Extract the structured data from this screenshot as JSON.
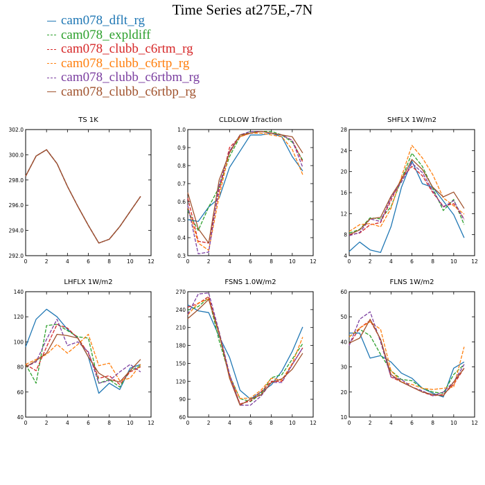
{
  "figure_title": "Time Series at275E,-7N",
  "legend": [
    {
      "label": "cam078_dflt_rg",
      "color": "#1f77b4",
      "dashed": false
    },
    {
      "label": "cam078_expldiff",
      "color": "#2ca02c",
      "dashed": true
    },
    {
      "label": "cam078_clubb_c6rtm_rg",
      "color": "#d62728",
      "dashed": true
    },
    {
      "label": "cam078_clubb_c6rtp_rg",
      "color": "#ff7f0e",
      "dashed": true
    },
    {
      "label": "cam078_clubb_c6rtbm_rg",
      "color": "#7b3fa0",
      "dashed": true
    },
    {
      "label": "cam078_clubb_c6rtbp_rg",
      "color": "#a0522d",
      "dashed": false
    }
  ],
  "chart_data": [
    {
      "type": "line",
      "title": "TS   1K",
      "x": [
        0,
        1,
        2,
        3,
        4,
        5,
        6,
        7,
        8,
        9,
        10,
        11
      ],
      "xlim": [
        0,
        12
      ],
      "xticks": [
        "0",
        "2",
        "4",
        "6",
        "8",
        "10",
        "12"
      ],
      "ylim": [
        292,
        302
      ],
      "yticks": [
        "292.0",
        "294.0",
        "296.0",
        "298.0",
        "300.0",
        "302.0"
      ],
      "series": [
        {
          "name": "cam078_dflt_rg",
          "values": [
            298.3,
            299.9,
            300.4,
            299.3,
            297.5,
            295.9,
            294.4,
            293.0,
            293.3,
            294.3,
            295.5,
            296.7
          ]
        },
        {
          "name": "cam078_expldiff",
          "values": [
            298.3,
            299.9,
            300.4,
            299.3,
            297.5,
            295.9,
            294.4,
            293.0,
            293.3,
            294.3,
            295.5,
            296.7
          ]
        },
        {
          "name": "cam078_clubb_c6rtm_rg",
          "values": [
            298.3,
            299.9,
            300.4,
            299.3,
            297.5,
            295.9,
            294.4,
            293.0,
            293.3,
            294.3,
            295.5,
            296.7
          ]
        },
        {
          "name": "cam078_clubb_c6rtp_rg",
          "values": [
            298.3,
            299.9,
            300.4,
            299.3,
            297.5,
            295.9,
            294.4,
            293.0,
            293.3,
            294.3,
            295.5,
            296.7
          ]
        },
        {
          "name": "cam078_clubb_c6rtbm_rg",
          "values": [
            298.3,
            299.9,
            300.4,
            299.3,
            297.5,
            295.9,
            294.4,
            293.0,
            293.3,
            294.3,
            295.5,
            296.7
          ]
        },
        {
          "name": "cam078_clubb_c6rtbp_rg",
          "values": [
            298.3,
            299.9,
            300.4,
            299.3,
            297.5,
            295.9,
            294.4,
            293.0,
            293.3,
            294.3,
            295.5,
            296.7
          ]
        }
      ]
    },
    {
      "type": "line",
      "title": "CLDLOW   1fraction",
      "x": [
        0,
        1,
        2,
        3,
        4,
        5,
        6,
        7,
        8,
        9,
        10,
        11
      ],
      "xlim": [
        0,
        12
      ],
      "xticks": [
        "0",
        "2",
        "4",
        "6",
        "8",
        "10",
        "12"
      ],
      "ylim": [
        0.3,
        1.0
      ],
      "yticks": [
        "0.3",
        "0.4",
        "0.5",
        "0.6",
        "0.7",
        "0.8",
        "0.9",
        "1.0"
      ],
      "series": [
        {
          "name": "cam078_dflt_rg",
          "values": [
            0.5,
            0.49,
            0.57,
            0.62,
            0.79,
            0.88,
            0.97,
            0.97,
            0.98,
            0.96,
            0.85,
            0.77
          ]
        },
        {
          "name": "cam078_expldiff",
          "values": [
            0.55,
            0.44,
            0.57,
            0.68,
            0.85,
            0.96,
            0.99,
            0.99,
            0.99,
            0.97,
            0.93,
            0.83
          ]
        },
        {
          "name": "cam078_clubb_c6rtm_rg",
          "values": [
            0.62,
            0.38,
            0.37,
            0.66,
            0.9,
            0.96,
            0.98,
            0.99,
            0.98,
            0.97,
            0.94,
            0.82
          ]
        },
        {
          "name": "cam078_clubb_c6rtp_rg",
          "values": [
            0.57,
            0.37,
            0.33,
            0.63,
            0.88,
            0.96,
            0.98,
            0.98,
            0.97,
            0.96,
            0.89,
            0.75
          ]
        },
        {
          "name": "cam078_clubb_c6rtbm_rg",
          "values": [
            0.58,
            0.31,
            0.32,
            0.69,
            0.88,
            0.97,
            0.99,
            0.99,
            0.98,
            0.97,
            0.94,
            0.79
          ]
        },
        {
          "name": "cam078_clubb_c6rtbp_rg",
          "values": [
            0.65,
            0.45,
            0.37,
            0.72,
            0.87,
            0.97,
            0.98,
            0.99,
            0.98,
            0.97,
            0.96,
            0.87
          ]
        }
      ]
    },
    {
      "type": "line",
      "title": "SHFLX   1W/m2",
      "x": [
        0,
        1,
        2,
        3,
        4,
        5,
        6,
        7,
        8,
        9,
        10,
        11
      ],
      "xlim": [
        0,
        12
      ],
      "xticks": [
        "0",
        "2",
        "4",
        "6",
        "8",
        "10",
        "12"
      ],
      "ylim": [
        4,
        28
      ],
      "yticks": [
        "4",
        "8",
        "12",
        "16",
        "20",
        "24",
        "28"
      ],
      "series": [
        {
          "name": "cam078_dflt_rg",
          "values": [
            4.8,
            6.6,
            5.1,
            4.6,
            9.5,
            17.0,
            22.0,
            17.7,
            17.0,
            14.4,
            11.8,
            7.4
          ]
        },
        {
          "name": "cam078_expldiff",
          "values": [
            8.3,
            9.0,
            11.2,
            11.0,
            13.3,
            18.5,
            23.5,
            21.0,
            16.8,
            12.6,
            14.7,
            9.9
          ]
        },
        {
          "name": "cam078_clubb_c6rtm_rg",
          "values": [
            8.0,
            8.3,
            9.9,
            10.3,
            14.5,
            18.7,
            21.0,
            19.2,
            16.0,
            13.4,
            13.9,
            11.0
          ]
        },
        {
          "name": "cam078_clubb_c6rtp_rg",
          "values": [
            8.6,
            9.9,
            10.1,
            9.5,
            13.0,
            19.0,
            25.0,
            22.6,
            19.4,
            15.0,
            13.5,
            11.9
          ]
        },
        {
          "name": "cam078_clubb_c6rtbm_rg",
          "values": [
            7.8,
            8.4,
            11.0,
            10.5,
            15.0,
            18.0,
            21.6,
            19.8,
            16.3,
            13.2,
            14.5,
            10.8
          ]
        },
        {
          "name": "cam078_clubb_c6rtbp_rg",
          "values": [
            8.0,
            8.9,
            11.0,
            11.3,
            15.3,
            18.4,
            22.3,
            20.4,
            17.0,
            15.2,
            16.1,
            13.0
          ]
        }
      ]
    },
    {
      "type": "line",
      "title": "LHFLX   1W/m2",
      "x": [
        0,
        1,
        2,
        3,
        4,
        5,
        6,
        7,
        8,
        9,
        10,
        11
      ],
      "xlim": [
        0,
        12
      ],
      "xticks": [
        "0",
        "2",
        "4",
        "6",
        "8",
        "10",
        "12"
      ],
      "ylim": [
        40,
        140
      ],
      "yticks": [
        "40",
        "60",
        "80",
        "100",
        "120",
        "140"
      ],
      "series": [
        {
          "name": "cam078_dflt_rg",
          "values": [
            96,
            118,
            126,
            120,
            110,
            103,
            88,
            59,
            67,
            62,
            79,
            82
          ]
        },
        {
          "name": "cam078_expldiff",
          "values": [
            82,
            67,
            113,
            114,
            109,
            104,
            103,
            67,
            70,
            64,
            77,
            81
          ]
        },
        {
          "name": "cam078_clubb_c6rtm_rg",
          "values": [
            82,
            77,
            96,
            114,
            111,
            103,
            91,
            71,
            73,
            66,
            76,
            80
          ]
        },
        {
          "name": "cam078_clubb_c6rtp_rg",
          "values": [
            82,
            86,
            90,
            98,
            91,
            98,
            106,
            81,
            83,
            69,
            71,
            82
          ]
        },
        {
          "name": "cam078_clubb_c6rtbm_rg",
          "values": [
            80,
            84,
            102,
            118,
            97,
            100,
            92,
            67,
            69,
            76,
            82,
            76
          ]
        },
        {
          "name": "cam078_clubb_c6rtbp_rg",
          "values": [
            80,
            85,
            91,
            106,
            105,
            103,
            88,
            75,
            70,
            68,
            77,
            86
          ]
        }
      ]
    },
    {
      "type": "line",
      "title": "FSNS   1.0W/m2",
      "x": [
        0,
        1,
        2,
        3,
        4,
        5,
        6,
        7,
        8,
        9,
        10,
        11
      ],
      "xlim": [
        0,
        12
      ],
      "xticks": [
        "0",
        "2",
        "4",
        "6",
        "8",
        "10",
        "12"
      ],
      "ylim": [
        60,
        270
      ],
      "yticks": [
        "60",
        "90",
        "120",
        "150",
        "180",
        "210",
        "240",
        "270"
      ],
      "series": [
        {
          "name": "cam078_dflt_rg",
          "values": [
            248,
            238,
            235,
            195,
            160,
            105,
            90,
            102,
            114,
            137,
            170,
            211
          ]
        },
        {
          "name": "cam078_expldiff",
          "values": [
            239,
            245,
            260,
            188,
            130,
            91,
            86,
            99,
            126,
            131,
            157,
            183
          ]
        },
        {
          "name": "cam078_clubb_c6rtm_rg",
          "values": [
            244,
            250,
            262,
            200,
            130,
            82,
            87,
            102,
            120,
            120,
            148,
            176
          ]
        },
        {
          "name": "cam078_clubb_c6rtp_rg",
          "values": [
            231,
            251,
            258,
            198,
            128,
            91,
            92,
            105,
            125,
            122,
            150,
            194
          ]
        },
        {
          "name": "cam078_clubb_c6rtbm_rg",
          "values": [
            232,
            266,
            268,
            203,
            132,
            80,
            80,
            95,
            118,
            118,
            148,
            176
          ]
        },
        {
          "name": "cam078_clubb_c6rtbp_rg",
          "values": [
            225,
            240,
            257,
            200,
            125,
            80,
            90,
            97,
            118,
            124,
            140,
            167
          ]
        }
      ]
    },
    {
      "type": "line",
      "title": "FLNS   1W/m2",
      "x": [
        0,
        1,
        2,
        3,
        4,
        5,
        6,
        7,
        8,
        9,
        10,
        11
      ],
      "xlim": [
        0,
        12
      ],
      "xticks": [
        "0",
        "2",
        "4",
        "6",
        "8",
        "10",
        "12"
      ],
      "ylim": [
        10,
        60
      ],
      "yticks": [
        "10",
        "20",
        "30",
        "40",
        "50",
        "60"
      ],
      "series": [
        {
          "name": "cam078_dflt_rg",
          "values": [
            43.5,
            43.5,
            33.5,
            34.5,
            32.0,
            27.5,
            25.5,
            21.5,
            19.5,
            18.0,
            29.5,
            32.0
          ]
        },
        {
          "name": "cam078_expldiff",
          "values": [
            42.0,
            45.0,
            42.5,
            35.0,
            28.5,
            25.0,
            24.5,
            21.5,
            20.0,
            19.5,
            27.0,
            31.0
          ]
        },
        {
          "name": "cam078_clubb_c6rtm_rg",
          "values": [
            39.0,
            45.5,
            48.5,
            41.0,
            26.0,
            24.0,
            22.0,
            20.0,
            18.5,
            19.0,
            23.0,
            29.5
          ]
        },
        {
          "name": "cam078_clubb_c6rtp_rg",
          "values": [
            42.0,
            45.5,
            48.0,
            45.0,
            28.5,
            24.0,
            23.0,
            21.5,
            21.0,
            21.5,
            22.0,
            38.0
          ]
        },
        {
          "name": "cam078_clubb_c6rtbm_rg",
          "values": [
            38.5,
            49.0,
            52.0,
            40.0,
            26.0,
            25.0,
            22.0,
            20.5,
            18.5,
            20.0,
            24.0,
            31.0
          ]
        },
        {
          "name": "cam078_clubb_c6rtbp_rg",
          "values": [
            39.5,
            41.5,
            49.0,
            41.0,
            27.0,
            24.0,
            22.0,
            20.0,
            19.0,
            18.5,
            24.0,
            29.5
          ]
        }
      ]
    }
  ]
}
